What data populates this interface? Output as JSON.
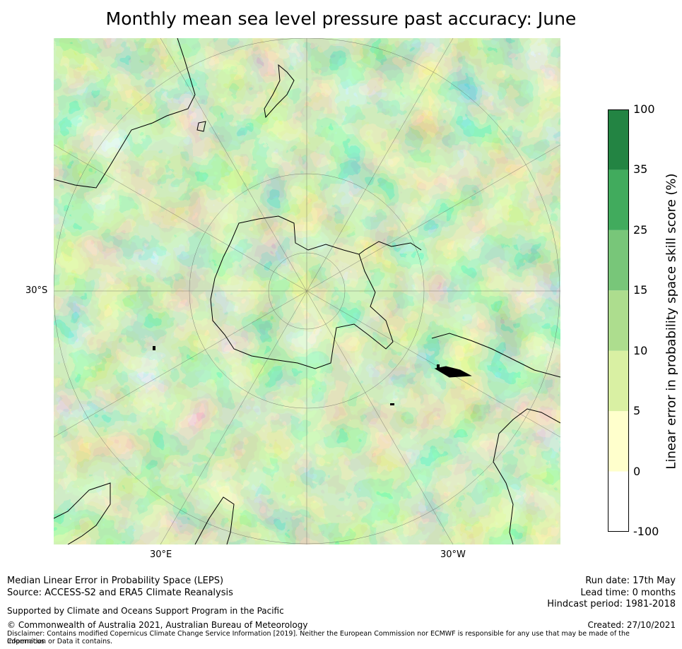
{
  "title": "Monthly mean sea level pressure past accuracy: June",
  "map": {
    "projection": "south-polar-stereographic",
    "lat_label": "30°S",
    "lon_labels": {
      "east": "30°E",
      "west": "30°W"
    }
  },
  "colorbar": {
    "label": "Linear error in probability space skill score (%)",
    "ticks": [
      "-100",
      "0",
      "5",
      "10",
      "15",
      "25",
      "35",
      "100"
    ],
    "bins": [
      {
        "from": "-100",
        "to": "0",
        "color": "#ffffff"
      },
      {
        "from": "0",
        "to": "5",
        "color": "#ffffcc"
      },
      {
        "from": "5",
        "to": "10",
        "color": "#d9f0a3"
      },
      {
        "from": "10",
        "to": "15",
        "color": "#addd8e"
      },
      {
        "from": "15",
        "to": "25",
        "color": "#78c679"
      },
      {
        "from": "25",
        "to": "35",
        "color": "#41ab5d"
      },
      {
        "from": "35",
        "to": "100",
        "color": "#238443"
      }
    ]
  },
  "footer": {
    "left": {
      "line1": "Median Linear Error in Probability Space (LEPS)",
      "line2": "Source: ACCESS-S2 and ERA5 Climate Reanalysis",
      "supported": "Supported by Climate and Oceans Support Program in the Pacific",
      "copyright": "© Commonwealth of Australia 2021, Australian Bureau of Meteorology",
      "disclaimer1": "Disclaimer: Contains modified Copernicus Climate Change Service Information [2019]. Neither the European Commission nor ECMWF is responsible for any use that may be made of the Copernicus",
      "disclaimer2": "Information or Data it contains."
    },
    "right": {
      "run_date": "Run date: 17th May",
      "lead_time": "Lead time: 0 months",
      "hindcast": "Hindcast period: 1981-2018",
      "created": "Created: 27/10/2021"
    }
  }
}
